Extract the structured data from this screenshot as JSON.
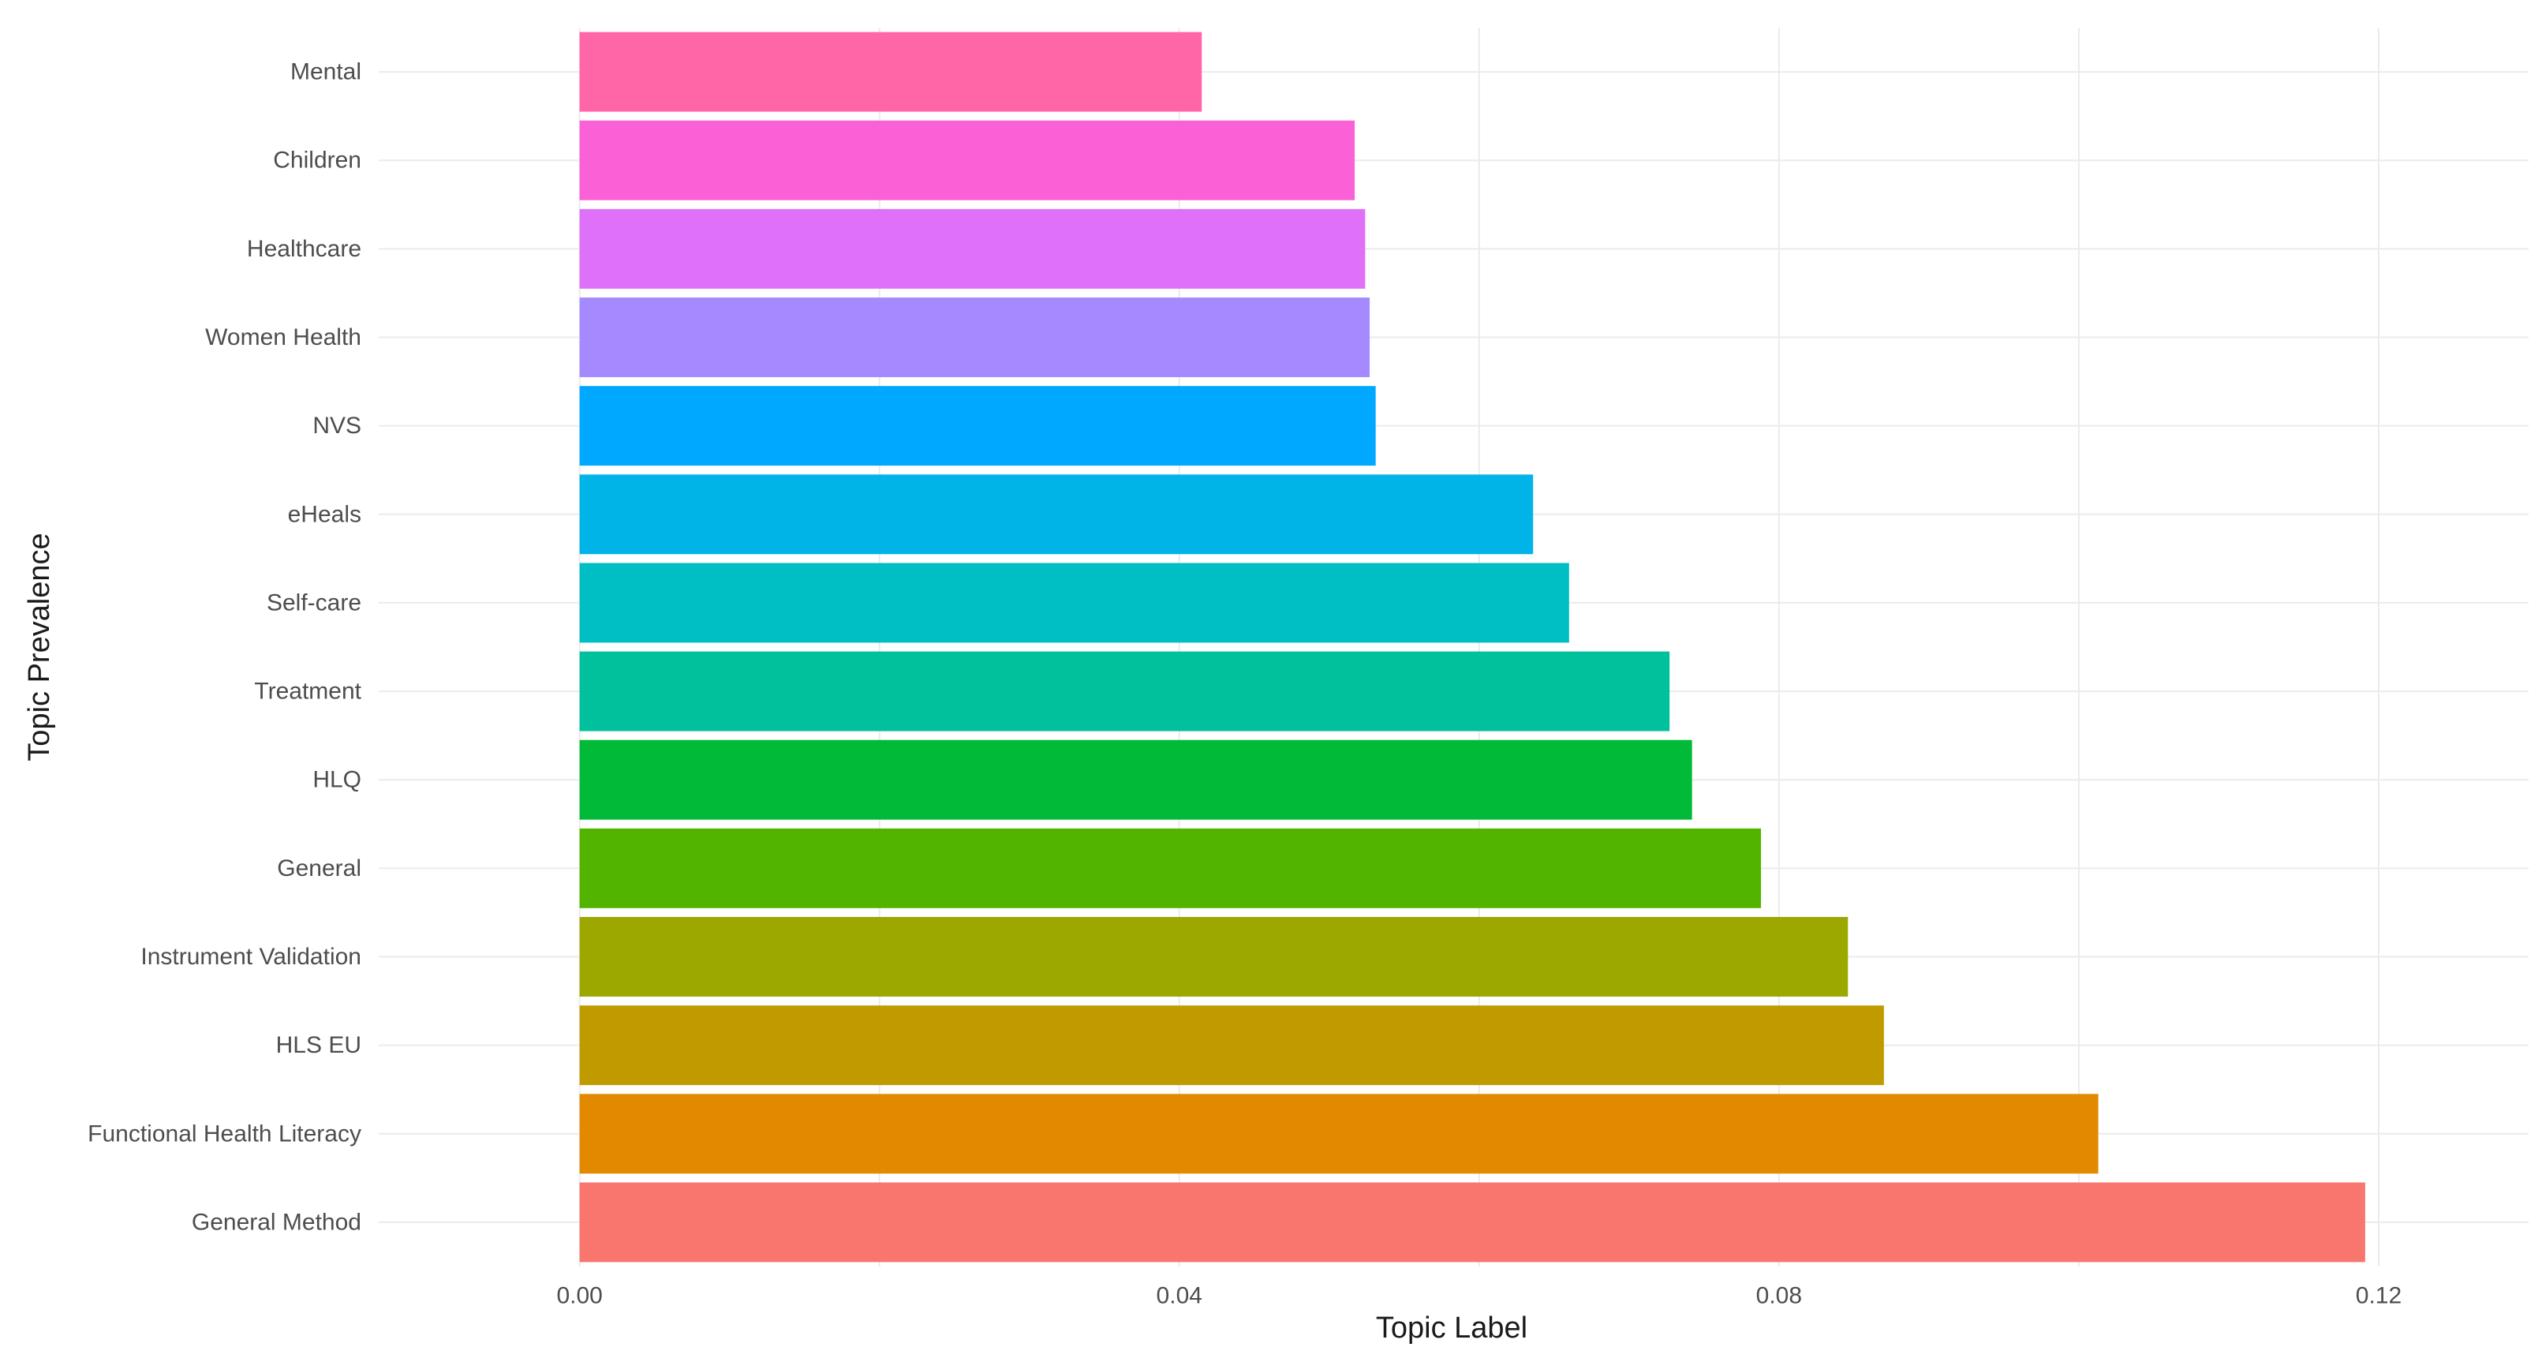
{
  "chart_data": {
    "type": "bar",
    "orientation": "horizontal",
    "title": "",
    "xlabel": "Topic Label",
    "ylabel": "Topic Prevalence",
    "xlim": [
      -0.0134,
      0.13
    ],
    "x_ticks": [
      {
        "value": 0.0,
        "label": "0.00"
      },
      {
        "value": 0.04,
        "label": "0.04"
      },
      {
        "value": 0.08,
        "label": "0.08"
      },
      {
        "value": 0.12,
        "label": "0.12"
      }
    ],
    "x_minor_ticks": [
      0.02,
      0.06,
      0.1
    ],
    "grid": true,
    "legend": "none",
    "categories": [
      "Mental",
      "Children",
      "Healthcare",
      "Women Health",
      "NVS",
      "eHeals",
      "Self-care",
      "Treatment",
      "HLQ",
      "General",
      "Instrument Validation",
      "HLS EU",
      "Functional Health Literacy",
      "General Method"
    ],
    "values": [
      0.0415,
      0.0517,
      0.0524,
      0.0527,
      0.0531,
      0.0636,
      0.066,
      0.0727,
      0.0742,
      0.0788,
      0.0846,
      0.087,
      0.1013,
      0.1191
    ],
    "colors": [
      "#FF66A8",
      "#FB61D7",
      "#DF70F8",
      "#A58AFF",
      "#00A9FF",
      "#00B4E8",
      "#00BFC4",
      "#00C19C",
      "#00BA38",
      "#53B400",
      "#9CA700",
      "#C09B00",
      "#E38900",
      "#F8766D"
    ]
  }
}
